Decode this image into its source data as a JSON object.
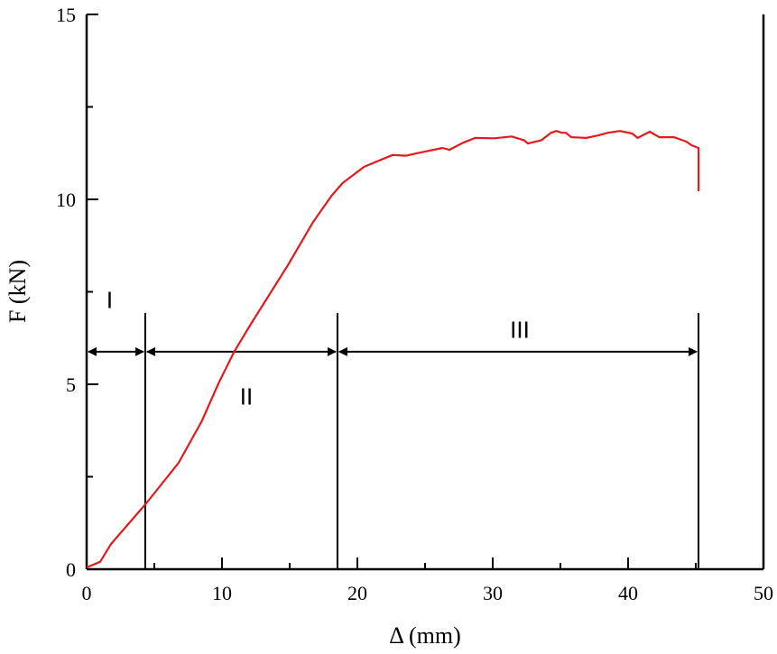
{
  "chart_data": {
    "type": "line",
    "title": "",
    "xlabel": "Δ (mm)",
    "ylabel": "F (kN)",
    "xlim": [
      0,
      50
    ],
    "ylim": [
      0,
      15
    ],
    "x_ticks": [
      0,
      10,
      20,
      30,
      40,
      50
    ],
    "x_tick_labels": [
      "0",
      "10",
      "20",
      "30",
      "40",
      "50"
    ],
    "x_minor_ticks": [
      5,
      15,
      25,
      35,
      45
    ],
    "y_ticks": [
      0,
      5,
      10,
      15
    ],
    "y_tick_labels": [
      "0",
      "5",
      "10",
      "15"
    ],
    "y_minor_ticks": [
      2.5,
      7.5,
      12.5
    ],
    "grid": false,
    "series": [
      {
        "color": "#e31a1c",
        "x": [
          0,
          1.0,
          1.8,
          4.4,
          6.8,
          8.5,
          9.8,
          10.9,
          12.1,
          14.9,
          16.7,
          18.1,
          18.9,
          20.5,
          22.6,
          23.6,
          24.7,
          26.3,
          26.8,
          27.8,
          28.7,
          30.1,
          31.4,
          32.3,
          32.6,
          33.6,
          34.3,
          34.7,
          35.1,
          35.4,
          35.8,
          36.9,
          37.8,
          38.5,
          39.4,
          40.3,
          40.7,
          41.6,
          42.3,
          43.4,
          44.3,
          44.7,
          45.2,
          45.2
        ],
        "y": [
          0.05,
          0.2,
          0.68,
          1.78,
          2.88,
          4.0,
          5.07,
          5.88,
          6.61,
          8.24,
          9.37,
          10.1,
          10.44,
          10.88,
          11.2,
          11.18,
          11.27,
          11.39,
          11.34,
          11.53,
          11.66,
          11.65,
          11.7,
          11.6,
          11.51,
          11.6,
          11.8,
          11.85,
          11.8,
          11.8,
          11.68,
          11.66,
          11.73,
          11.8,
          11.85,
          11.78,
          11.66,
          11.83,
          11.68,
          11.68,
          11.56,
          11.46,
          11.39,
          10.22
        ]
      }
    ],
    "annotations": {
      "boundaries_x": [
        4.33,
        18.53,
        45.2
      ],
      "boundary_top_y": 6.93,
      "arrow_y": 5.88,
      "regions": [
        {
          "label": "I",
          "x": 1.7,
          "y": 7.3
        },
        {
          "label": "II",
          "x": 11.8,
          "y": 4.7
        },
        {
          "label": "III",
          "x": 32,
          "y": 6.5
        }
      ]
    }
  }
}
